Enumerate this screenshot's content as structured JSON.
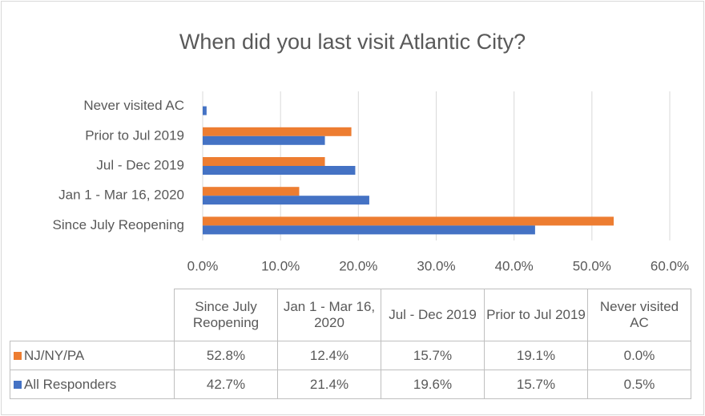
{
  "chart_data": {
    "type": "bar",
    "orientation": "horizontal",
    "title": "When did you last visit Atlantic City?",
    "categories": [
      "Since July Reopening",
      "Jan 1 - Mar 16, 2020",
      "Jul - Dec 2019",
      "Prior to Jul 2019",
      "Never visited AC"
    ],
    "series": [
      {
        "name": "NJ/NY/PA",
        "color": "#ed7d31",
        "values": [
          52.8,
          12.4,
          15.7,
          19.1,
          0.0
        ],
        "value_labels": [
          "52.8%",
          "12.4%",
          "15.7%",
          "19.1%",
          "0.0%"
        ]
      },
      {
        "name": "All Responders",
        "color": "#4472c4",
        "values": [
          42.7,
          21.4,
          19.6,
          15.7,
          0.5
        ],
        "value_labels": [
          "42.7%",
          "21.4%",
          "19.6%",
          "15.7%",
          "0.5%"
        ]
      }
    ],
    "xlim": [
      0,
      60
    ],
    "xticks": [
      {
        "value": 0,
        "label": "0.0%"
      },
      {
        "value": 10,
        "label": "10.0%"
      },
      {
        "value": 20,
        "label": "20.0%"
      },
      {
        "value": 30,
        "label": "30.0%"
      },
      {
        "value": 40,
        "label": "40.0%"
      },
      {
        "value": 50,
        "label": "50.0%"
      },
      {
        "value": 60,
        "label": "60.0%"
      }
    ],
    "grid": true,
    "legend": "table"
  }
}
